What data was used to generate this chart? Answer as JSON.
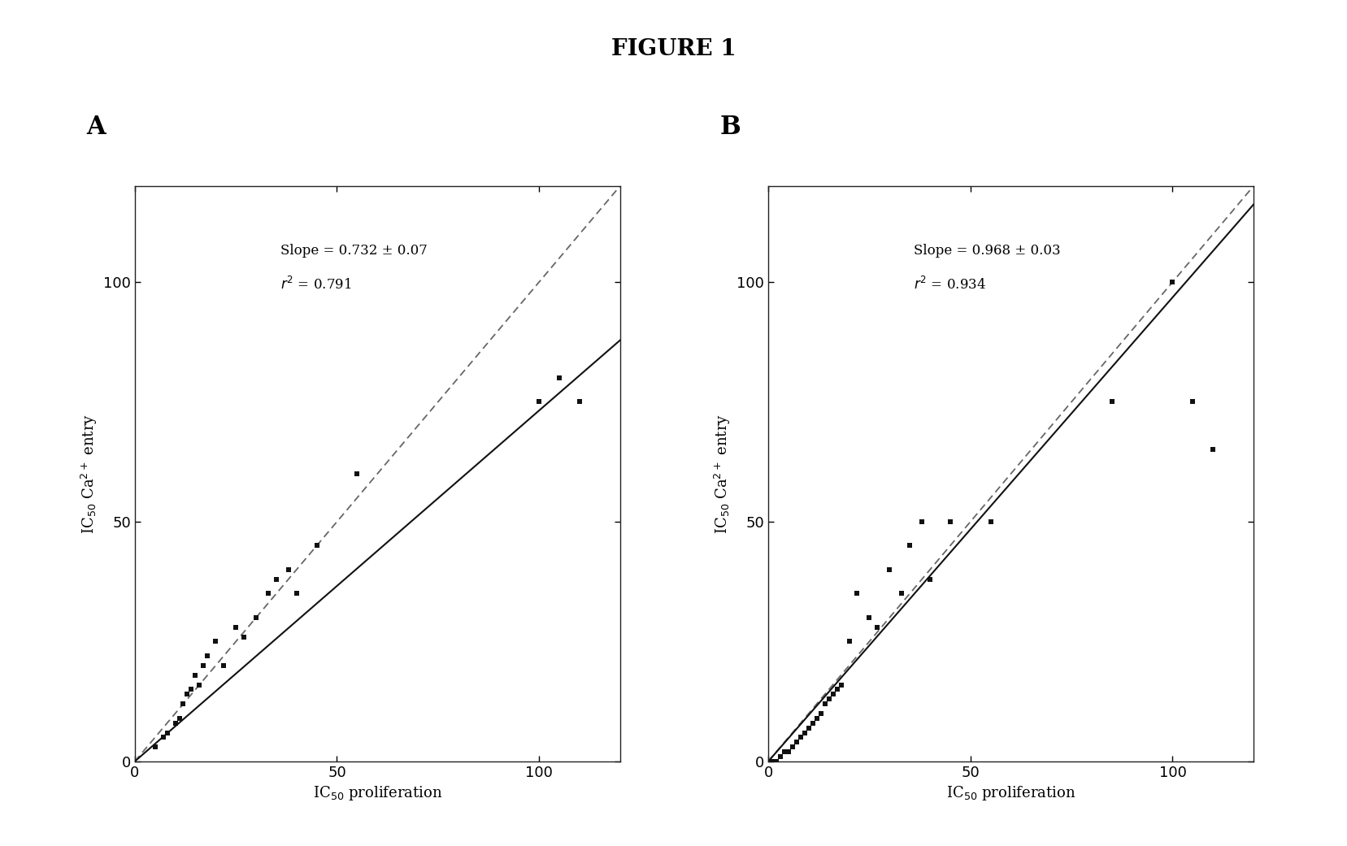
{
  "title": "FIGURE 1",
  "panel_A": {
    "label": "A",
    "slope": 0.732,
    "slope_err": 0.07,
    "r2": 0.791,
    "scatter_x": [
      5,
      7,
      8,
      10,
      11,
      12,
      13,
      14,
      15,
      16,
      17,
      18,
      20,
      22,
      25,
      27,
      30,
      33,
      35,
      38,
      40,
      45,
      55,
      100,
      105,
      110
    ],
    "scatter_y": [
      3,
      5,
      6,
      8,
      9,
      12,
      14,
      15,
      18,
      16,
      20,
      22,
      25,
      20,
      28,
      26,
      30,
      35,
      38,
      40,
      35,
      45,
      60,
      75,
      80,
      75
    ]
  },
  "panel_B": {
    "label": "B",
    "slope": 0.968,
    "slope_err": 0.03,
    "r2": 0.934,
    "scatter_x": [
      1,
      2,
      3,
      4,
      5,
      6,
      7,
      8,
      9,
      10,
      11,
      12,
      13,
      14,
      15,
      16,
      17,
      18,
      20,
      22,
      25,
      27,
      30,
      33,
      35,
      38,
      40,
      45,
      55,
      85,
      100,
      105,
      110
    ],
    "scatter_y": [
      0,
      0,
      1,
      2,
      2,
      3,
      4,
      5,
      6,
      7,
      8,
      9,
      10,
      12,
      13,
      14,
      15,
      16,
      25,
      35,
      30,
      28,
      40,
      35,
      45,
      50,
      38,
      50,
      50,
      75,
      100,
      75,
      65
    ]
  },
  "xlim": [
    0,
    120
  ],
  "ylim": [
    0,
    120
  ],
  "xticks": [
    0,
    50,
    100
  ],
  "yticks": [
    0,
    50,
    100
  ],
  "xlabel": "IC$_{50}$ proliferation",
  "ylabel": "IC$_{50}$ Ca$^{2+}$ entry",
  "bg_color": "#ffffff",
  "scatter_color": "#111111",
  "regression_color": "#111111",
  "identity_color": "#666666"
}
